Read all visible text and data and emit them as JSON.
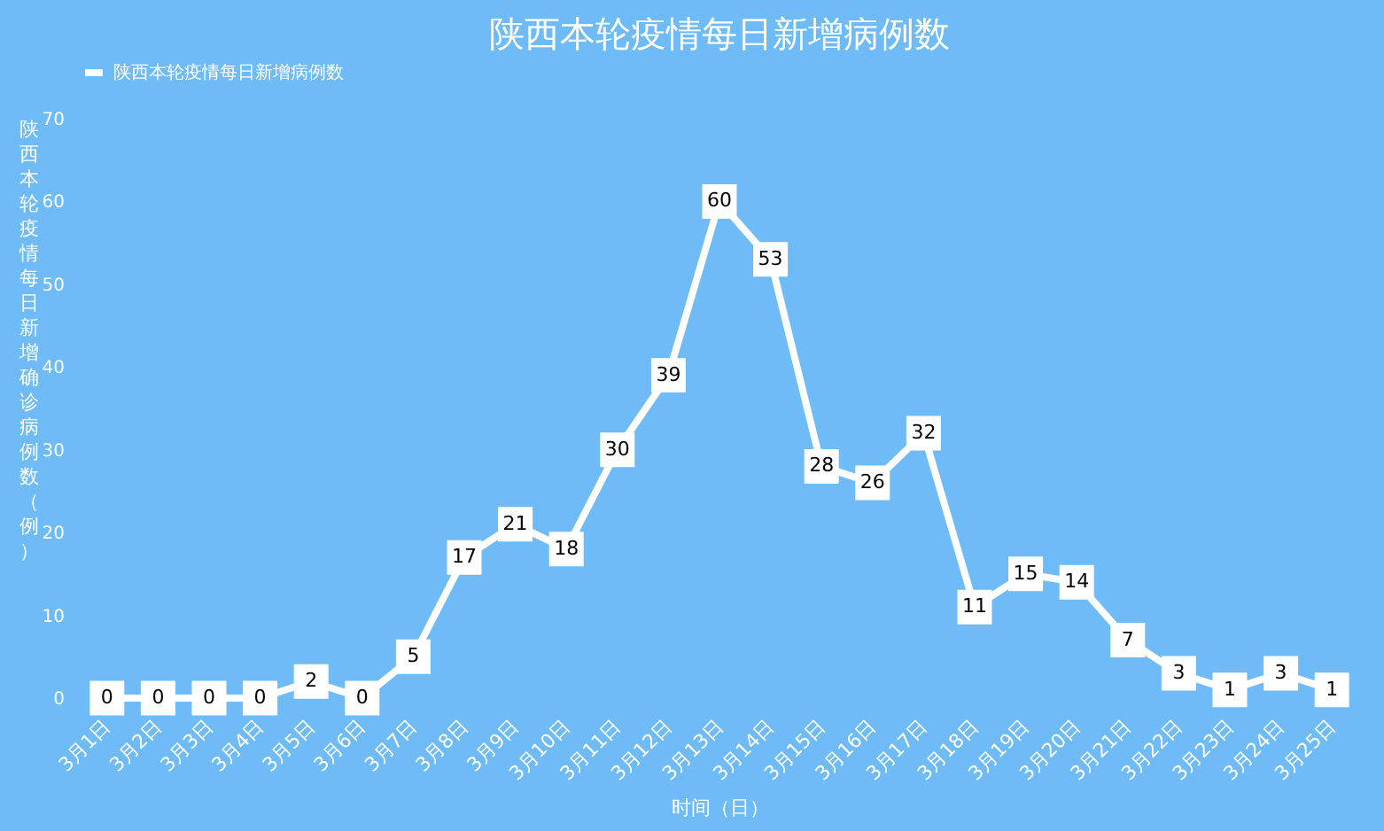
{
  "chart_data": {
    "type": "line",
    "title": "陕西本轮疫情每日新增病例数",
    "xlabel": "时间（日）",
    "ylabel": "陕西本轮疫情每日新增确诊病例数（例）",
    "categories": [
      "3月1日",
      "3月2日",
      "3月3日",
      "3月4日",
      "3月5日",
      "3月6日",
      "3月7日",
      "3月8日",
      "3月9日",
      "3月10日",
      "3月11日",
      "3月12日",
      "3月13日",
      "3月14日",
      "3月15日",
      "3月16日",
      "3月17日",
      "3月18日",
      "3月19日",
      "3月20日",
      "3月21日",
      "3月22日",
      "3月23日",
      "3月24日",
      "3月25日"
    ],
    "series": [
      {
        "name": "陕西本轮疫情每日新增病例数",
        "color": "#ffffff",
        "values": [
          0,
          0,
          0,
          0,
          2,
          0,
          5,
          17,
          21,
          18,
          30,
          39,
          60,
          53,
          28,
          26,
          32,
          11,
          15,
          14,
          7,
          3,
          1,
          3,
          1
        ]
      }
    ],
    "ylim": [
      0,
      70
    ],
    "yticks": [
      0,
      10,
      20,
      30,
      40,
      50,
      60,
      70
    ],
    "grid": false,
    "legend": "top",
    "marker": "square",
    "line_style": "solid",
    "data_labels": true
  }
}
